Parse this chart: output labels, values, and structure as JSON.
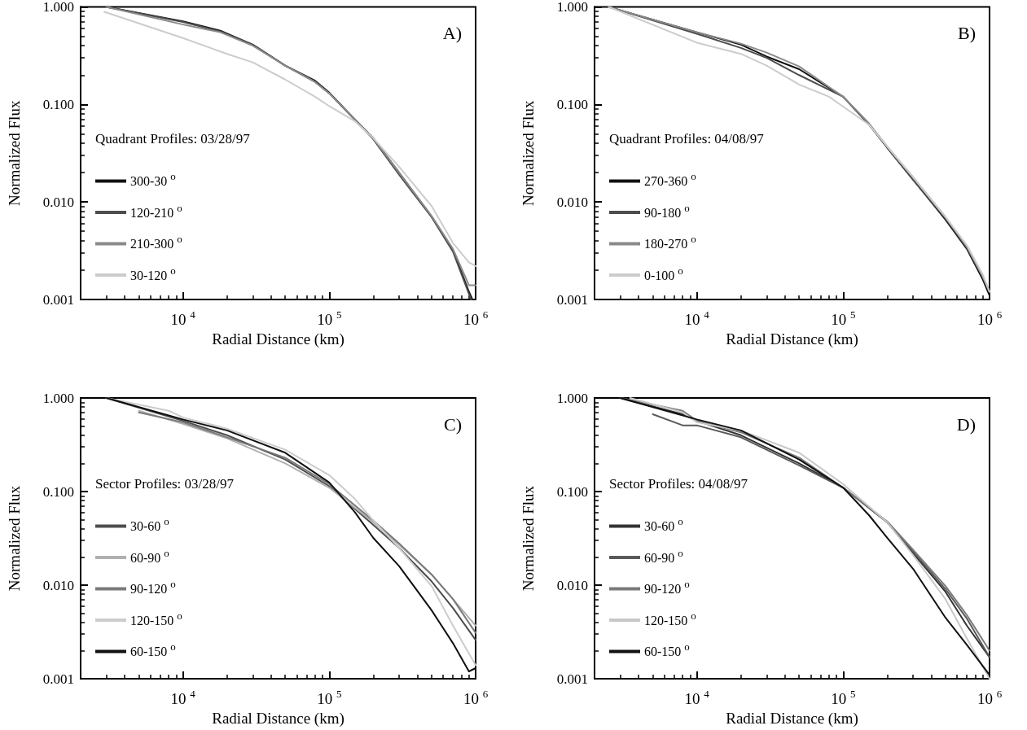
{
  "chart_data": [
    {
      "type": "line",
      "xlabel": "Radial Distance (km)",
      "ylabel": "Normalized Flux",
      "legend_title": "Quadrant Profiles: 03/28/97",
      "annotations": [
        "A)"
      ],
      "log": "xy",
      "legend": "left",
      "marker": "none",
      "line_style": "solid",
      "xlim": [
        2000,
        1000000
      ],
      "ylim": [
        0.001,
        1
      ],
      "xticks": [
        {
          "value": 10000,
          "label": "10$^{4}$"
        },
        {
          "value": 100000,
          "label": "10$^{5}$"
        },
        {
          "value": 1000000,
          "label": "10$^{6}$"
        }
      ],
      "yticks": [
        {
          "value": 0.001,
          "label": "0.001"
        },
        {
          "value": 0.01,
          "label": "0.010"
        },
        {
          "value": 0.1,
          "label": "0.100"
        },
        {
          "value": 1,
          "label": "1.000"
        }
      ],
      "series": [
        {
          "name": "300-30$^{o}$",
          "color": "#111111",
          "x": [
            3000,
            10000,
            18000,
            30000,
            50000,
            80000,
            100000,
            150000,
            200000,
            300000,
            500000,
            700000,
            900000,
            950000
          ],
          "values": [
            1.0,
            0.71,
            0.57,
            0.41,
            0.25,
            0.175,
            0.132,
            0.07,
            0.045,
            0.02,
            0.0071,
            0.0032,
            0.0012,
            0.001
          ]
        },
        {
          "name": "120-210$^{o}$",
          "color": "#4d4d4d",
          "x": [
            3000,
            10000,
            18000,
            30000,
            50000,
            80000,
            100000,
            150000,
            200000,
            300000,
            500000,
            700000,
            930000
          ],
          "values": [
            1.0,
            0.7,
            0.56,
            0.41,
            0.25,
            0.17,
            0.13,
            0.069,
            0.044,
            0.019,
            0.007,
            0.0031,
            0.001
          ]
        },
        {
          "name": "210-300$^{o}$",
          "color": "#8a8a8a",
          "x": [
            3000,
            10000,
            18000,
            30000,
            50000,
            80000,
            100000,
            150000,
            200000,
            300000,
            500000,
            700000,
            900000,
            1000000
          ],
          "values": [
            1.0,
            0.66,
            0.55,
            0.4,
            0.25,
            0.17,
            0.13,
            0.07,
            0.045,
            0.02,
            0.0072,
            0.0033,
            0.0014,
            0.0014
          ]
        },
        {
          "name": "30-120$^{o}$",
          "color": "#cccccc",
          "x": [
            2900,
            10000,
            20000,
            30000,
            50000,
            80000,
            100000,
            150000,
            200000,
            300000,
            500000,
            700000,
            900000,
            1000000
          ],
          "values": [
            0.89,
            0.48,
            0.33,
            0.27,
            0.18,
            0.12,
            0.096,
            0.067,
            0.045,
            0.023,
            0.0091,
            0.0038,
            0.0024,
            0.0022
          ]
        }
      ]
    },
    {
      "type": "line",
      "xlabel": "Radial Distance (km)",
      "ylabel": "Normalized Flux",
      "legend_title": "Quadrant Profiles: 04/08/97",
      "annotations": [
        "B)"
      ],
      "log": "xy",
      "legend": "left",
      "marker": "none",
      "line_style": "solid",
      "xlim": [
        2000,
        1000000
      ],
      "ylim": [
        0.001,
        1
      ],
      "xticks": [
        {
          "value": 10000,
          "label": "10$^{4}$"
        },
        {
          "value": 100000,
          "label": "10$^{5}$"
        },
        {
          "value": 1000000,
          "label": "10$^{6}$"
        }
      ],
      "yticks": [
        {
          "value": 0.001,
          "label": "0.001"
        },
        {
          "value": 0.01,
          "label": "0.010"
        },
        {
          "value": 0.1,
          "label": "0.100"
        },
        {
          "value": 1,
          "label": "1.000"
        }
      ],
      "series": [
        {
          "name": "270-360$^{o}$",
          "color": "#111111",
          "x": [
            2500,
            10000,
            20000,
            30000,
            50000,
            100000,
            150000,
            200000,
            300000,
            500000,
            700000,
            900000,
            1000000
          ],
          "values": [
            1.0,
            0.55,
            0.41,
            0.31,
            0.23,
            0.12,
            0.063,
            0.036,
            0.017,
            0.0066,
            0.0033,
            0.0016,
            0.0011
          ]
        },
        {
          "name": "90-180$^{o}$",
          "color": "#4d4d4d",
          "x": [
            2500,
            10000,
            20000,
            30000,
            50000,
            100000,
            150000,
            200000,
            300000,
            500000,
            700000,
            900000,
            1000000
          ],
          "values": [
            1.0,
            0.53,
            0.38,
            0.3,
            0.2,
            0.12,
            0.062,
            0.036,
            0.017,
            0.0068,
            0.0034,
            0.0017,
            0.0012
          ]
        },
        {
          "name": "180-270$^{o}$",
          "color": "#8a8a8a",
          "x": [
            2500,
            10000,
            20000,
            30000,
            50000,
            100000,
            150000,
            200000,
            300000,
            500000,
            700000,
            900000,
            1000000
          ],
          "values": [
            1.0,
            0.55,
            0.42,
            0.34,
            0.245,
            0.12,
            0.064,
            0.037,
            0.018,
            0.007,
            0.0035,
            0.0017,
            0.0012
          ]
        },
        {
          "name": "0-100$^{o}$",
          "color": "#cccccc",
          "x": [
            2500,
            10000,
            20000,
            30000,
            50000,
            80000,
            100000,
            150000,
            200000,
            300000,
            500000,
            700000,
            900000,
            1000000
          ],
          "values": [
            1.0,
            0.43,
            0.33,
            0.25,
            0.16,
            0.12,
            0.095,
            0.062,
            0.037,
            0.018,
            0.007,
            0.0036,
            0.0018,
            0.0012
          ]
        }
      ]
    },
    {
      "type": "line",
      "xlabel": "Radial Distance (km)",
      "ylabel": "Normalized Flux",
      "legend_title": "Sector Profiles: 03/28/97",
      "annotations": [
        "C)"
      ],
      "log": "xy",
      "legend": "left",
      "marker": "none",
      "line_style": "solid",
      "xlim": [
        2000,
        1000000
      ],
      "ylim": [
        0.001,
        1
      ],
      "xticks": [
        {
          "value": 10000,
          "label": "10$^{4}$"
        },
        {
          "value": 100000,
          "label": "10$^{5}$"
        },
        {
          "value": 1000000,
          "label": "10$^{6}$"
        }
      ],
      "yticks": [
        {
          "value": 0.001,
          "label": "0.001"
        },
        {
          "value": 0.01,
          "label": "0.010"
        },
        {
          "value": 0.1,
          "label": "0.100"
        },
        {
          "value": 1,
          "label": "1.000"
        }
      ],
      "series": [
        {
          "name": "30-60$^{o}$",
          "color": "#4d4d4d",
          "x": [
            3000,
            10000,
            20000,
            50000,
            100000,
            150000,
            200000,
            300000,
            500000,
            700000,
            1000000
          ],
          "values": [
            1.0,
            0.57,
            0.4,
            0.22,
            0.114,
            0.065,
            0.044,
            0.025,
            0.011,
            0.0057,
            0.0026
          ]
        },
        {
          "name": "60-90$^{o}$",
          "color": "#b0b0b0",
          "x": [
            5000,
            10000,
            20000,
            50000,
            100000,
            200000,
            300000,
            500000,
            700000,
            1000000
          ],
          "values": [
            0.73,
            0.53,
            0.37,
            0.2,
            0.11,
            0.047,
            0.027,
            0.013,
            0.0071,
            0.0037
          ]
        },
        {
          "name": "90-120$^{o}$",
          "color": "#7a7a7a",
          "x": [
            5000,
            10000,
            20000,
            50000,
            100000,
            200000,
            300000,
            500000,
            700000,
            1000000
          ],
          "values": [
            0.7,
            0.55,
            0.38,
            0.23,
            0.12,
            0.049,
            0.028,
            0.013,
            0.0071,
            0.0031
          ]
        },
        {
          "name": "120-150$^{o}$",
          "color": "#cccccc",
          "x": [
            3000,
            8000,
            10000,
            20000,
            50000,
            100000,
            150000,
            200000,
            300000,
            500000,
            700000,
            1000000
          ],
          "values": [
            1.0,
            0.73,
            0.62,
            0.47,
            0.28,
            0.15,
            0.083,
            0.049,
            0.025,
            0.0098,
            0.0037,
            0.0014
          ]
        },
        {
          "name": "60-150$^{o}$",
          "color": "#111111",
          "x": [
            3000,
            10000,
            20000,
            50000,
            100000,
            150000,
            200000,
            300000,
            500000,
            700000,
            900000,
            1000000
          ],
          "values": [
            1.0,
            0.59,
            0.45,
            0.26,
            0.125,
            0.06,
            0.032,
            0.016,
            0.0054,
            0.0024,
            0.0012,
            0.0013
          ]
        }
      ]
    },
    {
      "type": "line",
      "xlabel": "Radial Distance (km)",
      "ylabel": "Normalized Flux",
      "legend_title": "Sector Profiles: 04/08/97",
      "annotations": [
        "D)"
      ],
      "log": "xy",
      "legend": "left",
      "marker": "none",
      "line_style": "solid",
      "xlim": [
        2000,
        1000000
      ],
      "ylim": [
        0.001,
        1
      ],
      "xticks": [
        {
          "value": 10000,
          "label": "10$^{4}$"
        },
        {
          "value": 100000,
          "label": "10$^{5}$"
        },
        {
          "value": 1000000,
          "label": "10$^{6}$"
        }
      ],
      "yticks": [
        {
          "value": 0.001,
          "label": "0.001"
        },
        {
          "value": 0.01,
          "label": "0.010"
        },
        {
          "value": 0.1,
          "label": "0.100"
        },
        {
          "value": 1,
          "label": "1.000"
        }
      ],
      "series": [
        {
          "name": "30-60$^{o}$",
          "color": "#333333",
          "x": [
            3000,
            8000,
            10000,
            20000,
            50000,
            100000,
            200000,
            300000,
            500000,
            700000,
            1000000
          ],
          "values": [
            1.0,
            0.67,
            0.57,
            0.4,
            0.2,
            0.11,
            0.047,
            0.022,
            0.0085,
            0.0037,
            0.0017
          ]
        },
        {
          "name": "60-90$^{o}$",
          "color": "#5a5a5a",
          "x": [
            5000,
            8000,
            10000,
            20000,
            50000,
            100000,
            200000,
            300000,
            500000,
            700000,
            1000000
          ],
          "values": [
            0.67,
            0.51,
            0.51,
            0.38,
            0.19,
            0.11,
            0.047,
            0.023,
            0.0091,
            0.0044,
            0.0017
          ]
        },
        {
          "name": "90-120$^{o}$",
          "color": "#7a7a7a",
          "x": [
            3000,
            8000,
            10000,
            20000,
            50000,
            100000,
            200000,
            300000,
            500000,
            700000,
            1000000
          ],
          "values": [
            1.0,
            0.73,
            0.57,
            0.43,
            0.23,
            0.11,
            0.048,
            0.024,
            0.0098,
            0.0048,
            0.002
          ]
        },
        {
          "name": "120-150$^{o}$",
          "color": "#c8c8c8",
          "x": [
            3500,
            8000,
            10000,
            20000,
            50000,
            100000,
            200000,
            300000,
            500000,
            700000,
            1000000
          ],
          "values": [
            1.0,
            0.7,
            0.55,
            0.45,
            0.26,
            0.12,
            0.047,
            0.021,
            0.0071,
            0.0027,
            0.001
          ]
        },
        {
          "name": "60-150$^{o}$",
          "color": "#111111",
          "x": [
            3000,
            10000,
            20000,
            50000,
            100000,
            150000,
            200000,
            300000,
            500000,
            700000,
            1000000
          ],
          "values": [
            1.0,
            0.59,
            0.45,
            0.22,
            0.11,
            0.056,
            0.032,
            0.015,
            0.0045,
            0.0023,
            0.0011
          ]
        }
      ]
    }
  ]
}
